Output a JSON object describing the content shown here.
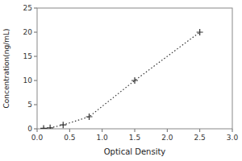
{
  "chart_data": {
    "type": "line",
    "x": [
      0.1,
      0.2,
      0.4,
      0.8,
      1.5,
      2.5
    ],
    "values": [
      0.1,
      0.2,
      0.8,
      2.5,
      10.0,
      20.0
    ],
    "xlabel": "Optical Density",
    "ylabel": "Concentration(ng/mL)",
    "xlim": [
      0,
      3
    ],
    "ylim": [
      0,
      25
    ],
    "xticks": [
      {
        "value": 0,
        "label": "0.0"
      },
      0.5,
      {
        "value": 1,
        "label": "1.0"
      },
      1.5,
      {
        "value": 2,
        "label": "2.0"
      },
      2.5,
      {
        "value": 3,
        "label": "3.0"
      }
    ],
    "yticks": [
      0,
      5,
      10,
      15,
      20,
      25
    ],
    "color": "#333333",
    "marker": "plus",
    "line_style": "dotted",
    "grid": false
  }
}
